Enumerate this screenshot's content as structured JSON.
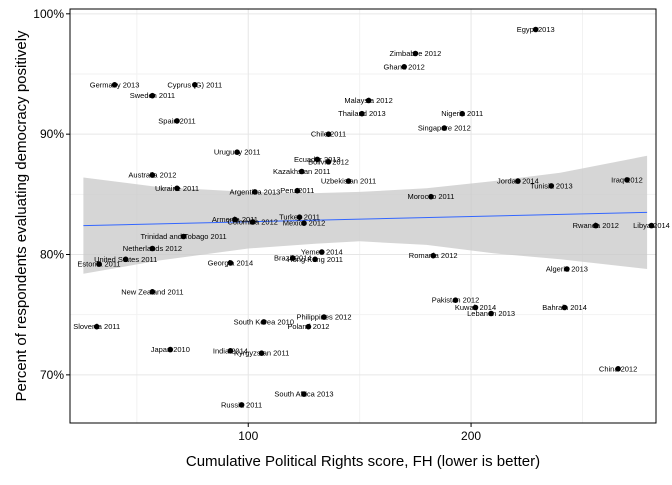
{
  "chart_data": {
    "type": "scatter",
    "title": "",
    "xlabel": "Cumulative Political Rights score, FH (lower is better)",
    "ylabel": "Percent of respondents evaluating democracy positively",
    "xlim": [
      20,
      283
    ],
    "ylim": [
      66,
      100.4
    ],
    "x_ticks": [
      100,
      200
    ],
    "y_ticks": [
      70,
      80,
      90,
      100
    ],
    "y_tick_labels": [
      "70%",
      "80%",
      "90%",
      "100%"
    ],
    "grid": true,
    "colors": {
      "point": "#000000",
      "trend": "#3366ff",
      "band": "#c8c8c8",
      "grid": "#e6e6e6",
      "frame": "#000000"
    },
    "trend": {
      "x": [
        26,
        279
      ],
      "y": [
        82.4,
        83.5
      ]
    },
    "band": {
      "x": [
        26,
        60,
        100,
        130,
        150,
        180,
        210,
        240,
        279
      ],
      "upper": [
        86.4,
        85.6,
        85.2,
        85.1,
        85.2,
        85.5,
        86.1,
        86.8,
        88.2
      ],
      "lower": [
        78.4,
        79.5,
        80.5,
        80.9,
        81.1,
        80.8,
        80.1,
        79.6,
        78.8
      ]
    },
    "points": [
      {
        "label": "Egypt 2013",
        "x": 229,
        "y": 98.7
      },
      {
        "label": "Zimbabve 2012",
        "x": 175,
        "y": 96.7
      },
      {
        "label": "Ghana 2012",
        "x": 170,
        "y": 95.6
      },
      {
        "label": "Germany 2013",
        "x": 40,
        "y": 94.1
      },
      {
        "label": "Cyprus (G) 2011",
        "x": 76,
        "y": 94.1
      },
      {
        "label": "Sweden 2011",
        "x": 57,
        "y": 93.2
      },
      {
        "label": "Malaysia 2012",
        "x": 154,
        "y": 92.8
      },
      {
        "label": "Thailand 2013",
        "x": 151,
        "y": 91.7
      },
      {
        "label": "Nigeria 2011",
        "x": 196,
        "y": 91.7
      },
      {
        "label": "Spain 2011",
        "x": 68,
        "y": 91.1
      },
      {
        "label": "Singapore 2012",
        "x": 188,
        "y": 90.5
      },
      {
        "label": "Chile 2011",
        "x": 136,
        "y": 90.0
      },
      {
        "label": "Uruguay 2011",
        "x": 95,
        "y": 88.5
      },
      {
        "label": "Ecuador 2013",
        "x": 131,
        "y": 87.9
      },
      {
        "label": "Bolivia 2012",
        "x": 136,
        "y": 87.7
      },
      {
        "label": "Kazakhstan 2011",
        "x": 124,
        "y": 86.9
      },
      {
        "label": "Australia 2012",
        "x": 57,
        "y": 86.6
      },
      {
        "label": "Uzbekistan 2011",
        "x": 145,
        "y": 86.1
      },
      {
        "label": "Jordan 2014",
        "x": 221,
        "y": 86.1
      },
      {
        "label": "Iraq 2012",
        "x": 270,
        "y": 86.2
      },
      {
        "label": "Tunisia 2013",
        "x": 236,
        "y": 85.7
      },
      {
        "label": "Ukraine 2011",
        "x": 68,
        "y": 85.5
      },
      {
        "label": "Argentina 2013",
        "x": 103,
        "y": 85.2
      },
      {
        "label": "Peru 2011",
        "x": 122,
        "y": 85.3
      },
      {
        "label": "Morocco 2011",
        "x": 182,
        "y": 84.8
      },
      {
        "label": "Turkey 2011",
        "x": 123,
        "y": 83.1
      },
      {
        "label": "Armenia 2011",
        "x": 94,
        "y": 82.9
      },
      {
        "label": "Colombia 2012",
        "x": 102,
        "y": 82.7
      },
      {
        "label": "Mexico 2012",
        "x": 125,
        "y": 82.6
      },
      {
        "label": "Rwanda 2012",
        "x": 256,
        "y": 82.4
      },
      {
        "label": "Libya 2014",
        "x": 281,
        "y": 82.4
      },
      {
        "label": "Trinidad and Tobago 2011",
        "x": 71,
        "y": 81.5
      },
      {
        "label": "Netherlands 2012",
        "x": 57,
        "y": 80.5
      },
      {
        "label": "United States 2011",
        "x": 45,
        "y": 79.6
      },
      {
        "label": "Estonia 2011",
        "x": 33,
        "y": 79.2
      },
      {
        "label": "Yemen 2014",
        "x": 133,
        "y": 80.2
      },
      {
        "label": "Brazil 2014",
        "x": 120,
        "y": 79.7
      },
      {
        "label": "Hong Kong 2011",
        "x": 130,
        "y": 79.6
      },
      {
        "label": "Romania 2012",
        "x": 183,
        "y": 79.9
      },
      {
        "label": "Georgia 2014",
        "x": 92,
        "y": 79.3
      },
      {
        "label": "Algeria 2013",
        "x": 243,
        "y": 78.8
      },
      {
        "label": "New Zealand 2011",
        "x": 57,
        "y": 76.9
      },
      {
        "label": "Pakistan 2012",
        "x": 193,
        "y": 76.2
      },
      {
        "label": "Kuwait 2014",
        "x": 202,
        "y": 75.6
      },
      {
        "label": "Bahrain 2014",
        "x": 242,
        "y": 75.6
      },
      {
        "label": "Lebanon 2013",
        "x": 209,
        "y": 75.1
      },
      {
        "label": "Philippines 2012",
        "x": 134,
        "y": 74.8
      },
      {
        "label": "South Korea 2010",
        "x": 107,
        "y": 74.4
      },
      {
        "label": "Poland 2012",
        "x": 127,
        "y": 74.0
      },
      {
        "label": "Slovenia 2011",
        "x": 32,
        "y": 74.0
      },
      {
        "label": "Japan 2010",
        "x": 65,
        "y": 72.1
      },
      {
        "label": "India 2014",
        "x": 92,
        "y": 72.0
      },
      {
        "label": "Kyrgyzstan 2011",
        "x": 106,
        "y": 71.8
      },
      {
        "label": "China 2012",
        "x": 266,
        "y": 70.5
      },
      {
        "label": "South Africa 2013",
        "x": 125,
        "y": 68.4
      },
      {
        "label": "Russia 2011",
        "x": 97,
        "y": 67.5
      }
    ]
  }
}
